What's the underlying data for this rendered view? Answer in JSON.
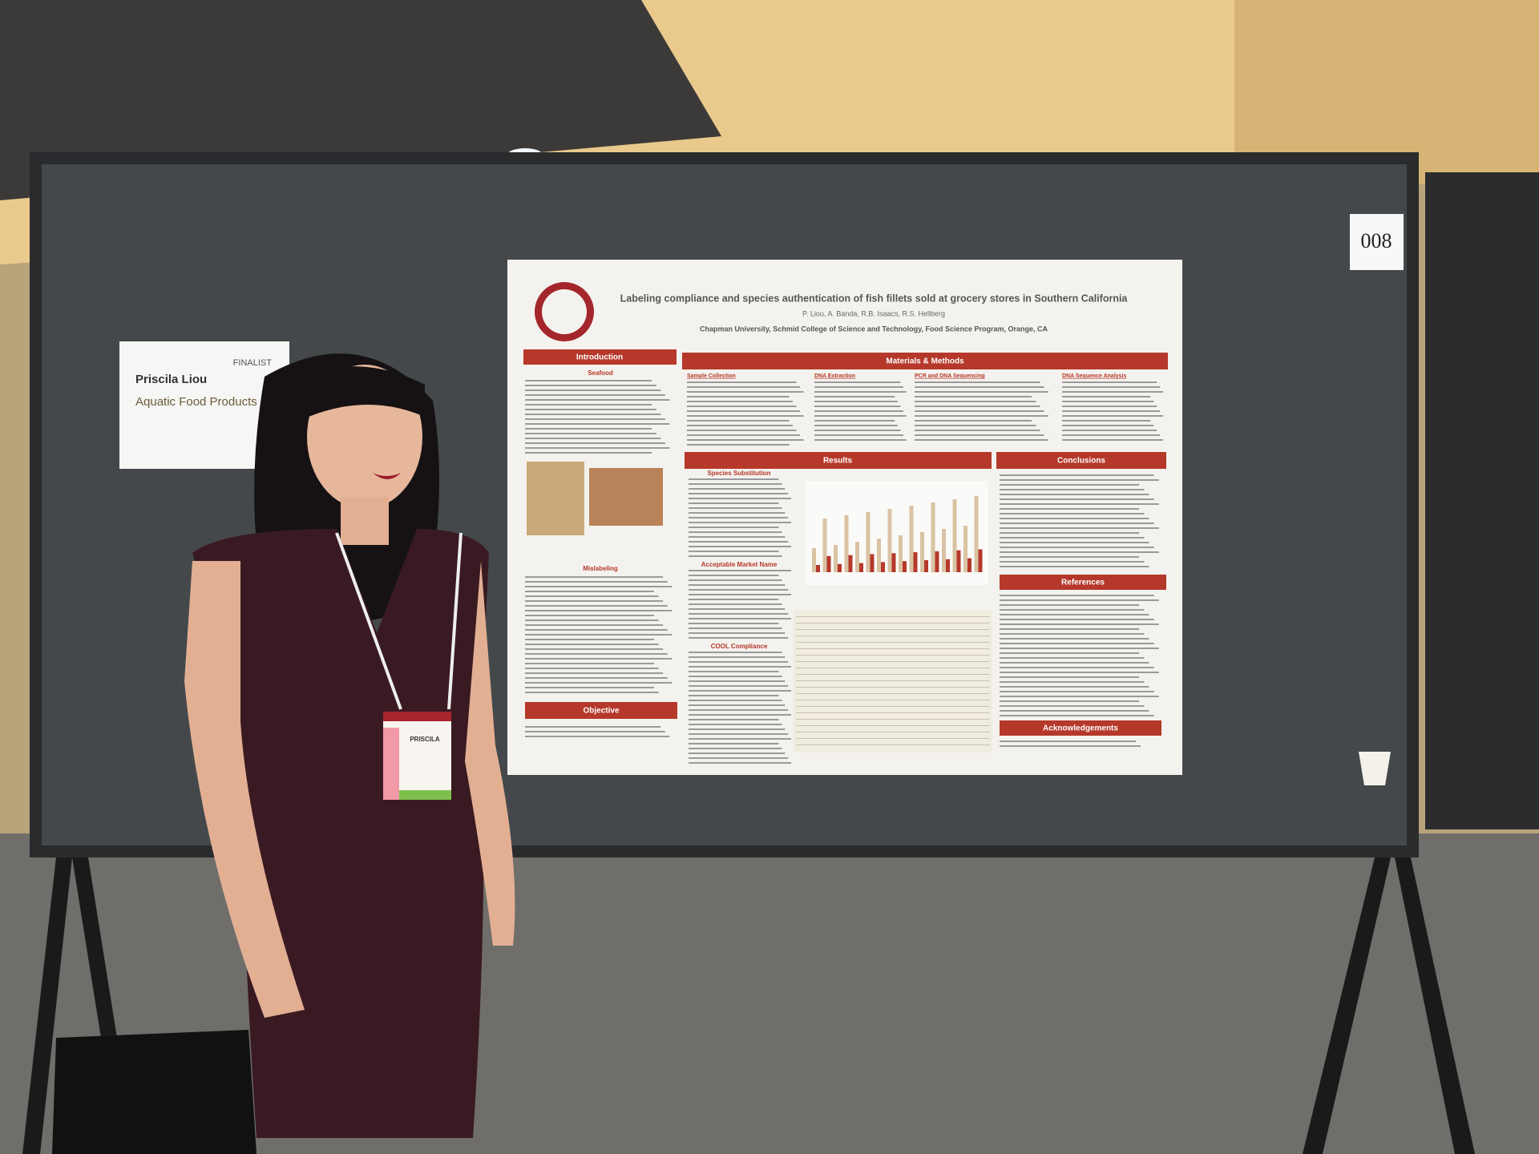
{
  "sign": {
    "label": "FINALIST",
    "name": "Priscila Liou",
    "category": "Aquatic Food Products"
  },
  "booth_number": "008",
  "badge": {
    "name": "PRISCILA"
  },
  "poster": {
    "title": "Labeling compliance and species authentication of fish fillets sold at grocery stores in Southern California",
    "authors": "P. Liou, A. Banda, R.B. Isaacs, R.S. Hellberg",
    "affiliation": "Chapman University, Schmid College of Science and Technology, Food Science Program, Orange, CA",
    "sections": {
      "introduction": "Introduction",
      "methods": "Materials & Methods",
      "results": "Results",
      "conclusions": "Conclusions",
      "references": "References",
      "acknowledgements": "Acknowledgements",
      "objective": "Objective"
    },
    "subsections": {
      "seafood": "Seafood",
      "mislabeling": "Mislabeling",
      "sample_collection": "Sample Collection",
      "dna_extraction": "DNA Extraction",
      "pcr": "PCR and DNA Sequencing",
      "sequence_analysis": "DNA Sequence Analysis",
      "species_substitution": "Species Substitution",
      "market_name": "Acceptable Market Name",
      "cool": "COOL Compliance"
    }
  }
}
